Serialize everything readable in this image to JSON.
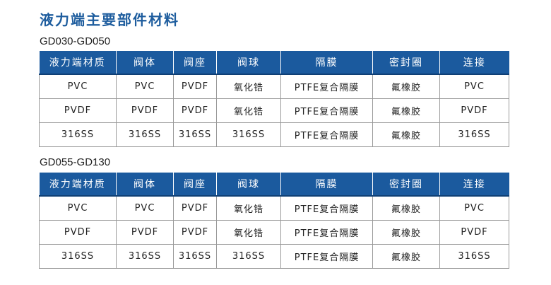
{
  "title": "液力端主要部件材料",
  "tables": [
    {
      "label": "GD030-GD050",
      "headers": [
        "液力端材质",
        "阀体",
        "阀座",
        "阀球",
        "隔膜",
        "密封圈",
        "连接"
      ],
      "rows": [
        [
          "PVC",
          "PVC",
          "PVDF",
          "氧化锆",
          "PTFE复合隔膜",
          "氟橡胶",
          "PVC"
        ],
        [
          "PVDF",
          "PVDF",
          "PVDF",
          "氧化锆",
          "PTFE复合隔膜",
          "氟橡胶",
          "PVDF"
        ],
        [
          "316SS",
          "316SS",
          "316SS",
          "316SS",
          "PTFE复合隔膜",
          "氟橡胶",
          "316SS"
        ]
      ]
    },
    {
      "label": "GD055-GD130",
      "headers": [
        "液力端材质",
        "阀体",
        "阀座",
        "阀球",
        "隔膜",
        "密封圈",
        "连接"
      ],
      "rows": [
        [
          "PVC",
          "PVC",
          "PVDF",
          "氧化锆",
          "PTFE复合隔膜",
          "氟橡胶",
          "PVC"
        ],
        [
          "PVDF",
          "PVDF",
          "PVDF",
          "氧化锆",
          "PTFE复合隔膜",
          "氟橡胶",
          "PVDF"
        ],
        [
          "316SS",
          "316SS",
          "316SS",
          "316SS",
          "PTFE复合隔膜",
          "氟橡胶",
          "316SS"
        ]
      ]
    }
  ]
}
